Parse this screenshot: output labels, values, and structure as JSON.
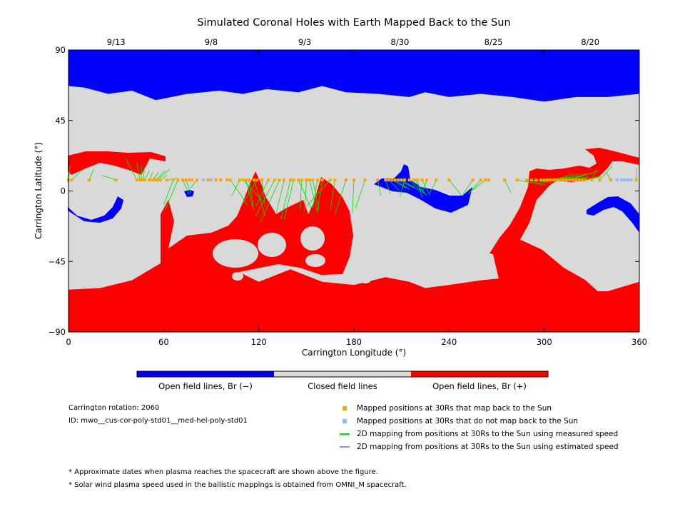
{
  "chart_data": {
    "type": "map",
    "title": "Simulated Coronal Holes with Earth Mapped Back to the Sun",
    "xlabel": "Carrington Longitude (°)",
    "ylabel": "Carrington Latitude (°)",
    "xlim": [
      0,
      360
    ],
    "ylim": [
      -90,
      90
    ],
    "x_ticks": [
      "0",
      "60",
      "120",
      "180",
      "240",
      "300",
      "360"
    ],
    "y_ticks": [
      "90",
      "45",
      "0",
      "−45",
      "−90"
    ],
    "x_tick_values": [
      0,
      60,
      120,
      180,
      240,
      300,
      360
    ],
    "y_tick_values": [
      90,
      45,
      0,
      -45,
      -90
    ],
    "top_dates": [
      {
        "label": "9/13",
        "lon": 30
      },
      {
        "label": "9/8",
        "lon": 90
      },
      {
        "label": "9/3",
        "lon": 149
      },
      {
        "label": "8/30",
        "lon": 209
      },
      {
        "label": "8/25",
        "lon": 268
      },
      {
        "label": "8/20",
        "lon": 329
      }
    ],
    "colors": {
      "open_negative": "#0000ff",
      "closed": "#d9d9d9",
      "open_positive": "#ff0000",
      "mapped": "#ffa500",
      "unmapped": "#87bff5",
      "measured_speed": "#00e000",
      "estimated_speed": "#b07fe8"
    },
    "north_blue_boundary": [
      [
        0,
        67
      ],
      [
        10,
        66
      ],
      [
        25,
        62
      ],
      [
        40,
        64
      ],
      [
        55,
        58
      ],
      [
        75,
        62
      ],
      [
        95,
        64
      ],
      [
        110,
        62
      ],
      [
        125,
        65
      ],
      [
        145,
        63
      ],
      [
        160,
        67
      ],
      [
        175,
        63
      ],
      [
        195,
        62
      ],
      [
        215,
        60
      ],
      [
        225,
        63
      ],
      [
        240,
        60
      ],
      [
        260,
        62
      ],
      [
        280,
        60
      ],
      [
        300,
        57
      ],
      [
        320,
        60
      ],
      [
        340,
        60
      ],
      [
        360,
        62
      ]
    ],
    "south_red_boundary": [
      [
        0,
        -63
      ],
      [
        20,
        -62
      ],
      [
        40,
        -57
      ],
      [
        60,
        -45
      ],
      [
        80,
        -47
      ],
      [
        100,
        -48
      ],
      [
        120,
        -58
      ],
      [
        140,
        -50
      ],
      [
        160,
        -58
      ],
      [
        180,
        -60
      ],
      [
        200,
        -55
      ],
      [
        215,
        -58
      ],
      [
        225,
        -62
      ],
      [
        240,
        -60
      ],
      [
        260,
        -57
      ],
      [
        280,
        -55
      ],
      [
        300,
        -52
      ],
      [
        320,
        -64
      ],
      [
        340,
        -64
      ],
      [
        360,
        -58
      ]
    ],
    "mapped_points": [
      [
        0,
        7
      ],
      [
        2,
        7
      ],
      [
        13,
        7
      ],
      [
        30,
        7
      ],
      [
        43,
        7
      ],
      [
        45,
        7
      ],
      [
        46,
        7
      ],
      [
        47,
        7
      ],
      [
        48,
        7
      ],
      [
        51,
        7
      ],
      [
        53,
        7
      ],
      [
        54,
        7
      ],
      [
        55,
        7
      ],
      [
        56,
        7
      ],
      [
        58,
        7
      ],
      [
        62,
        7
      ],
      [
        66,
        7
      ],
      [
        69,
        7
      ],
      [
        72,
        7
      ],
      [
        74,
        7
      ],
      [
        76,
        7
      ],
      [
        78,
        7
      ],
      [
        81,
        7
      ],
      [
        88,
        7
      ],
      [
        93,
        7
      ],
      [
        96,
        7
      ],
      [
        100,
        7
      ],
      [
        102,
        7
      ],
      [
        108,
        7
      ],
      [
        110,
        7
      ],
      [
        112,
        7
      ],
      [
        114,
        7
      ],
      [
        117,
        7
      ],
      [
        119,
        7
      ],
      [
        122,
        7
      ],
      [
        126,
        7
      ],
      [
        130,
        7
      ],
      [
        133,
        7
      ],
      [
        136,
        7
      ],
      [
        140,
        7
      ],
      [
        142,
        7
      ],
      [
        145,
        7
      ],
      [
        147,
        7
      ],
      [
        150,
        7
      ],
      [
        152,
        7
      ],
      [
        154,
        7
      ],
      [
        157,
        7
      ],
      [
        160,
        7
      ],
      [
        165,
        7
      ],
      [
        168,
        7
      ],
      [
        175,
        7
      ],
      [
        180,
        7
      ],
      [
        187,
        7
      ],
      [
        195,
        7
      ],
      [
        200,
        7
      ],
      [
        202,
        7
      ],
      [
        204,
        7
      ],
      [
        206,
        7
      ],
      [
        208,
        7
      ],
      [
        210,
        7
      ],
      [
        212,
        7
      ],
      [
        215,
        7
      ],
      [
        218,
        7
      ],
      [
        220,
        7
      ],
      [
        223,
        7
      ],
      [
        226,
        7
      ],
      [
        232,
        7
      ],
      [
        240,
        7
      ],
      [
        255,
        7
      ],
      [
        260,
        7
      ],
      [
        263,
        7
      ],
      [
        265,
        7
      ],
      [
        275,
        7
      ],
      [
        283,
        7
      ],
      [
        289,
        7
      ],
      [
        292,
        7
      ],
      [
        295,
        7
      ],
      [
        298,
        7
      ],
      [
        300,
        7
      ],
      [
        302,
        7
      ],
      [
        304,
        7
      ],
      [
        306,
        7
      ],
      [
        308,
        7
      ],
      [
        310,
        7
      ],
      [
        312,
        7
      ],
      [
        314,
        7
      ],
      [
        316,
        7
      ],
      [
        318,
        7
      ],
      [
        320,
        7
      ],
      [
        322,
        7
      ],
      [
        324,
        7
      ],
      [
        326,
        7
      ],
      [
        330,
        7
      ],
      [
        335,
        7
      ],
      [
        342,
        7
      ],
      [
        349,
        7
      ],
      [
        358,
        7
      ]
    ],
    "unmapped_points": [
      [
        85,
        7
      ],
      [
        90,
        7
      ],
      [
        346,
        7
      ],
      [
        349,
        7
      ],
      [
        351,
        7
      ],
      [
        353,
        7
      ],
      [
        355,
        7
      ]
    ],
    "footpoint_fan": [
      [
        0,
        7,
        1,
        16
      ],
      [
        2,
        7,
        8,
        13
      ],
      [
        13,
        7,
        16,
        14
      ],
      [
        30,
        7,
        21,
        10
      ],
      [
        43,
        7,
        36,
        21
      ],
      [
        45,
        7,
        43,
        18
      ],
      [
        46,
        7,
        46,
        16
      ],
      [
        47,
        7,
        48,
        15
      ],
      [
        48,
        7,
        51,
        13
      ],
      [
        51,
        7,
        53,
        12
      ],
      [
        53,
        7,
        57,
        12
      ],
      [
        55,
        7,
        61,
        13
      ],
      [
        56,
        7,
        64,
        14
      ],
      [
        58,
        7,
        62,
        10
      ],
      [
        62,
        7,
        68,
        8
      ],
      [
        66,
        7,
        60,
        -9
      ],
      [
        69,
        7,
        61,
        -12
      ],
      [
        72,
        7,
        76,
        -2
      ],
      [
        74,
        7,
        77,
        -1
      ],
      [
        81,
        7,
        77,
        2
      ],
      [
        102,
        7,
        113,
        -9
      ],
      [
        108,
        7,
        103,
        -3
      ],
      [
        110,
        7,
        122,
        -6
      ],
      [
        112,
        7,
        116,
        -10
      ],
      [
        114,
        7,
        117,
        -13
      ],
      [
        117,
        7,
        124,
        -16
      ],
      [
        119,
        7,
        110,
        -8
      ],
      [
        122,
        7,
        124,
        -10
      ],
      [
        126,
        7,
        118,
        -10
      ],
      [
        130,
        7,
        118,
        -16
      ],
      [
        133,
        7,
        121,
        -20
      ],
      [
        136,
        7,
        131,
        -14
      ],
      [
        140,
        7,
        134,
        -18
      ],
      [
        142,
        7,
        136,
        -18
      ],
      [
        145,
        7,
        153,
        -11
      ],
      [
        147,
        7,
        146,
        -12
      ],
      [
        150,
        7,
        149,
        -13
      ],
      [
        152,
        7,
        157,
        -14
      ],
      [
        154,
        7,
        158,
        -12
      ],
      [
        157,
        7,
        154,
        -11
      ],
      [
        160,
        7,
        157,
        -13
      ],
      [
        165,
        7,
        150,
        -10
      ],
      [
        168,
        7,
        165,
        -13
      ],
      [
        175,
        7,
        168,
        -15
      ],
      [
        180,
        7,
        179,
        -14
      ],
      [
        187,
        7,
        181,
        -11
      ],
      [
        195,
        7,
        197,
        -3
      ],
      [
        200,
        7,
        203,
        -2
      ],
      [
        202,
        7,
        209,
        0
      ],
      [
        204,
        7,
        213,
        2
      ],
      [
        206,
        7,
        215,
        1
      ],
      [
        208,
        7,
        218,
        2
      ],
      [
        210,
        7,
        222,
        0
      ],
      [
        212,
        7,
        209,
        -4
      ],
      [
        215,
        7,
        225,
        -2
      ],
      [
        218,
        7,
        226,
        -3
      ],
      [
        220,
        7,
        223,
        -4
      ],
      [
        223,
        7,
        228,
        -3
      ],
      [
        226,
        7,
        223,
        -1
      ],
      [
        232,
        7,
        228,
        -1
      ],
      [
        240,
        7,
        248,
        -3
      ],
      [
        255,
        7,
        249,
        -2
      ],
      [
        260,
        7,
        252,
        -2
      ],
      [
        263,
        7,
        254,
        0
      ],
      [
        275,
        7,
        279,
        -1
      ],
      [
        283,
        7,
        299,
        4
      ],
      [
        289,
        7,
        301,
        4
      ],
      [
        292,
        7,
        306,
        5
      ],
      [
        295,
        7,
        304,
        7
      ],
      [
        298,
        7,
        309,
        7
      ],
      [
        300,
        7,
        312,
        8
      ],
      [
        302,
        7,
        317,
        9
      ],
      [
        304,
        7,
        316,
        9
      ],
      [
        306,
        7,
        319,
        11
      ],
      [
        308,
        7,
        325,
        10
      ],
      [
        310,
        7,
        323,
        11
      ],
      [
        312,
        7,
        328,
        9
      ],
      [
        314,
        7,
        332,
        12
      ],
      [
        316,
        7,
        335,
        13
      ],
      [
        318,
        7,
        326,
        11
      ],
      [
        322,
        7,
        334,
        9
      ],
      [
        326,
        7,
        336,
        9
      ],
      [
        330,
        7,
        333,
        14
      ],
      [
        335,
        7,
        343,
        16
      ],
      [
        342,
        7,
        339,
        12
      ],
      [
        358,
        7,
        358,
        14
      ]
    ]
  },
  "colorbar": {
    "labels": [
      "Open field lines, Br (−)",
      "Closed field lines",
      "Open field lines, Br (+)"
    ]
  },
  "info": {
    "rotation": "Carrington rotation: 2060",
    "id": "ID: mwo__cus-cor-poly-std01__med-hel-poly-std01"
  },
  "legend": {
    "mapped": "Mapped positions at 30Rs that map back to the Sun",
    "unmapped": "Mapped positions at 30Rs that do not map back to the Sun",
    "measured": "2D mapping from positions at 30Rs to the Sun using measured speed",
    "estimated": "2D mapping from positions at 30Rs to the Sun using estimated speed"
  },
  "notes": [
    "* Approximate dates when plasma reaches the spacecraft are shown above the figure.",
    "* Solar wind plasma speed used in the ballistic mappings is obtained from OMNI_M spacecraft."
  ]
}
